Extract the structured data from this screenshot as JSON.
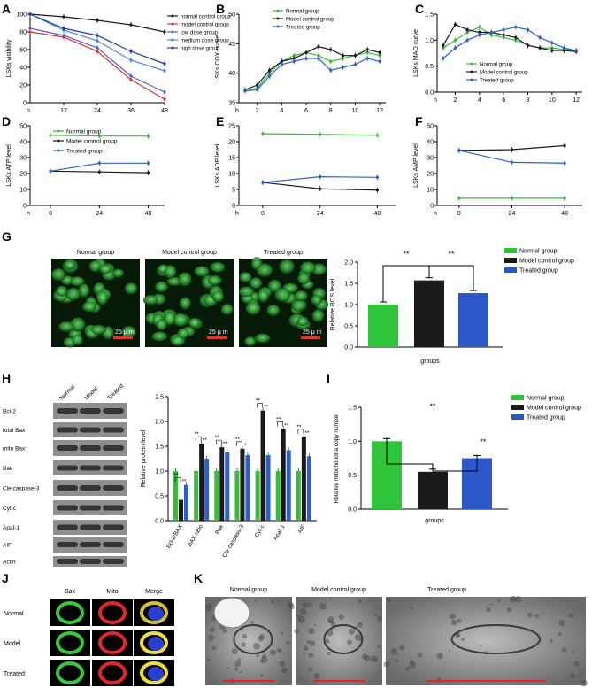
{
  "colors": {
    "green": "#3cba3c",
    "black": "#1a1a1a",
    "blue": "#2f5fc9",
    "red": "#d8323c",
    "purple": "#5a5fc8",
    "lightblue": "#4c86d8",
    "deepblue": "#1f3fa0",
    "sig_bar_green": "#2fc43a",
    "sig_bar_blue": "#2b57c9"
  },
  "panels": {
    "A": {
      "letter": "A"
    },
    "B": {
      "letter": "B"
    },
    "C": {
      "letter": "C"
    },
    "D": {
      "letter": "D"
    },
    "E": {
      "letter": "E"
    },
    "F": {
      "letter": "F"
    },
    "G": {
      "letter": "G"
    },
    "H": {
      "letter": "H"
    },
    "I": {
      "letter": "I"
    },
    "J": {
      "letter": "J"
    },
    "K": {
      "letter": "K"
    }
  },
  "chart_data": [
    {
      "panel": "A",
      "type": "line",
      "ylabel": "LSKs visibility",
      "xlabel_prefix": "h",
      "x": [
        0,
        12,
        24,
        36,
        48
      ],
      "xlim": [
        0,
        48
      ],
      "ylim": [
        0,
        100
      ],
      "xticks": [
        "12",
        "24",
        "36",
        "48"
      ],
      "yticks": [
        "0",
        "20",
        "40",
        "60",
        "80",
        "100"
      ],
      "legend": [
        "normal control group",
        "model control group",
        "low dose group",
        "medium dose group",
        "high dose group"
      ],
      "series": [
        {
          "name": "normal control group",
          "color": "#1a1a1a",
          "values": [
            100,
            97,
            93,
            88,
            80
          ]
        },
        {
          "name": "model control group",
          "color": "#d8323c",
          "values": [
            80,
            74,
            58,
            26,
            4
          ]
        },
        {
          "name": "low dose group",
          "color": "#5a5fc8",
          "values": [
            84,
            76,
            62,
            30,
            12
          ]
        },
        {
          "name": "medium dose group",
          "color": "#4c86d8",
          "values": [
            100,
            82,
            70,
            48,
            36
          ]
        },
        {
          "name": "high dose group",
          "color": "#1f3fa0",
          "values": [
            100,
            84,
            76,
            58,
            44
          ]
        }
      ]
    },
    {
      "panel": "B",
      "type": "line",
      "ylabel": "LSKs COX curve",
      "xlabel_prefix": "h",
      "x": [
        1,
        2,
        3,
        4,
        5,
        6,
        7,
        8,
        9,
        10,
        11,
        12
      ],
      "xlim": [
        0.5,
        12.5
      ],
      "ylim": [
        35,
        50
      ],
      "xticks": [
        "2",
        "4",
        "6",
        "8",
        "10",
        "12"
      ],
      "yticks": [
        "35",
        "40",
        "45",
        "50"
      ],
      "legend": [
        "Normal group",
        "Model control group",
        "Treated group"
      ],
      "series": [
        {
          "name": "Normal group",
          "color": "#3cba3c",
          "values": [
            37.0,
            37.5,
            40.0,
            42.0,
            43.0,
            43.5,
            43.0,
            42.0,
            42.5,
            43.0,
            43.5,
            43.0
          ]
        },
        {
          "name": "Model control group",
          "color": "#1a1a1a",
          "values": [
            37.2,
            38.0,
            40.5,
            42.0,
            42.5,
            43.5,
            44.5,
            44.0,
            43.0,
            43.0,
            44.0,
            43.5
          ]
        },
        {
          "name": "Treated group",
          "color": "#2f5fc9",
          "values": [
            37.0,
            37.2,
            39.5,
            41.5,
            42.0,
            42.5,
            42.5,
            40.5,
            41.0,
            41.5,
            42.5,
            42.0
          ]
        }
      ]
    },
    {
      "panel": "C",
      "type": "line",
      "ylabel": "LSKs MAO curve",
      "xlabel_prefix": "h",
      "x": [
        1,
        2,
        3,
        4,
        5,
        6,
        7,
        8,
        9,
        10,
        11,
        12
      ],
      "xlim": [
        0.5,
        12.5
      ],
      "ylim": [
        0,
        1.5
      ],
      "xticks": [
        "2",
        "4",
        "6",
        "8",
        "10",
        "12"
      ],
      "yticks": [
        "0.0",
        "0.5",
        "1.0",
        "1.5"
      ],
      "legend": [
        "Normal group",
        "Model control group",
        "Treated group"
      ],
      "series": [
        {
          "name": "Normal group",
          "color": "#3cba3c",
          "values": [
            0.85,
            1.0,
            1.15,
            1.25,
            1.1,
            1.05,
            1.0,
            0.9,
            0.85,
            0.85,
            0.82,
            0.8
          ]
        },
        {
          "name": "Model control group",
          "color": "#1a1a1a",
          "values": [
            0.9,
            1.3,
            1.2,
            1.15,
            1.15,
            1.1,
            1.05,
            0.9,
            0.85,
            0.8,
            0.8,
            0.78
          ]
        },
        {
          "name": "Treated group",
          "color": "#2f5fc9",
          "values": [
            0.65,
            0.85,
            1.0,
            1.1,
            1.15,
            1.2,
            1.25,
            1.2,
            1.05,
            0.95,
            0.85,
            0.8
          ]
        }
      ]
    },
    {
      "panel": "D",
      "type": "line",
      "ylabel": "LSKs ATP level",
      "xlabel_prefix": "h",
      "x": [
        0,
        24,
        48
      ],
      "xlim": [
        -10,
        56
      ],
      "ylim": [
        0,
        50
      ],
      "xticks": [
        "0",
        "24",
        "48"
      ],
      "yticks": [
        "0",
        "10",
        "20",
        "30",
        "40",
        "50"
      ],
      "legend": [
        "Normal group",
        "Model control group",
        "Treated group"
      ],
      "series": [
        {
          "name": "Normal group",
          "color": "#3cba3c",
          "values": [
            44,
            43.5,
            43.5
          ]
        },
        {
          "name": "Model control group",
          "color": "#1a1a1a",
          "values": [
            21.5,
            21,
            20.5
          ]
        },
        {
          "name": "Treated group",
          "color": "#2f5fc9",
          "values": [
            21.5,
            26.5,
            26.5
          ]
        }
      ]
    },
    {
      "panel": "E",
      "type": "line",
      "ylabel": "LSKs ADP level",
      "xlabel_prefix": "h",
      "x": [
        0,
        24,
        48
      ],
      "xlim": [
        -10,
        56
      ],
      "ylim": [
        0,
        25
      ],
      "xticks": [
        "0",
        "24",
        "48"
      ],
      "yticks": [
        "0",
        "5",
        "10",
        "15",
        "20",
        "25"
      ],
      "legend": [],
      "series": [
        {
          "color": "#3cba3c",
          "values": [
            22.5,
            22.3,
            22.0
          ]
        },
        {
          "color": "#1a1a1a",
          "values": [
            7.2,
            5.2,
            4.8
          ]
        },
        {
          "color": "#2f5fc9",
          "values": [
            7.2,
            9.0,
            8.8
          ]
        }
      ]
    },
    {
      "panel": "F",
      "type": "line",
      "ylabel": "LSKs AMP level",
      "xlabel_prefix": "h",
      "x": [
        0,
        24,
        48
      ],
      "xlim": [
        -10,
        56
      ],
      "ylim": [
        0,
        50
      ],
      "xticks": [
        "0",
        "24",
        "48"
      ],
      "yticks": [
        "0",
        "10",
        "20",
        "30",
        "40",
        "50"
      ],
      "legend": [],
      "series": [
        {
          "color": "#3cba3c",
          "values": [
            4.5,
            4.5,
            4.5
          ]
        },
        {
          "color": "#1a1a1a",
          "values": [
            34.5,
            35.0,
            37.5
          ]
        },
        {
          "color": "#2f5fc9",
          "values": [
            34.5,
            27.0,
            26.5
          ]
        }
      ]
    },
    {
      "panel": "G",
      "type": "bar",
      "ylabel": "Relative ROS level",
      "xlabel": "groups",
      "ylim": [
        0,
        2.0
      ],
      "yticks": [
        "0.0",
        "0.5",
        "1.0",
        "1.5",
        "2.0"
      ],
      "categories": [
        "Normal group",
        "Model control group",
        "Treated group"
      ],
      "values": [
        1.0,
        1.57,
        1.27
      ],
      "legend": [
        "Normal group",
        "Model control group",
        "Treated group"
      ],
      "significance": [
        "**",
        "**"
      ],
      "image_labels": [
        "Normal group",
        "Model control group",
        "Treated group"
      ],
      "scale_label": "25 μ m"
    },
    {
      "panel": "H",
      "type": "bar",
      "ylabel": "Relative protein level",
      "ylim": [
        0,
        2.5
      ],
      "yticks": [
        "0.0",
        "0.5",
        "1.0",
        "1.5",
        "2.0",
        "2.5"
      ],
      "categories": [
        "Bcl-2/BAX",
        "BAX ratio",
        "Bak",
        "Cle caspase-3",
        "Cyt-c",
        "Apaf-1",
        "AIF"
      ],
      "series": [
        {
          "name": "Normal",
          "color": "#3cba3c",
          "values": [
            1.0,
            1.0,
            1.0,
            1.0,
            1.0,
            1.0,
            1.0
          ]
        },
        {
          "name": "Model",
          "color": "#1a1a1a",
          "values": [
            0.42,
            1.55,
            1.48,
            1.45,
            2.22,
            1.85,
            1.7
          ]
        },
        {
          "name": "Treated",
          "color": "#2f5fc9",
          "values": [
            0.72,
            1.25,
            1.38,
            1.32,
            1.32,
            1.42,
            1.3
          ]
        }
      ],
      "significance": [
        "**",
        "**",
        "**",
        "**",
        "**",
        "**",
        "**",
        "*",
        "**",
        "**",
        "**",
        "**",
        "**",
        "**"
      ],
      "blot_rows": [
        "Bcl-2",
        "total Bax",
        "mito Bax",
        "Bak",
        "Cle caspase-3",
        "Cyt-c",
        "Apaf-1",
        "AIF",
        "Actin"
      ],
      "blot_columns": [
        "Normal",
        "Model",
        "Treated"
      ]
    },
    {
      "panel": "I",
      "type": "bar",
      "ylabel": "Relative mitochondria copy number",
      "xlabel": "groups",
      "ylim": [
        0,
        1.5
      ],
      "yticks": [
        "0.0",
        "0.5",
        "1.0",
        "1.5"
      ],
      "categories": [
        "Normal group",
        "Model control group",
        "Treated group"
      ],
      "values": [
        1.0,
        0.55,
        0.75
      ],
      "legend": [
        "Normal group",
        "Model control group",
        "Treated group"
      ],
      "significance": [
        "**",
        "**"
      ]
    }
  ],
  "panel_J": {
    "columns": [
      "Bax",
      "Mito",
      "Merge"
    ],
    "rows": [
      "Normal",
      "Model",
      "Treated"
    ]
  },
  "panel_K": {
    "labels": [
      "Normal group",
      "Model control group",
      "Treated group"
    ]
  }
}
